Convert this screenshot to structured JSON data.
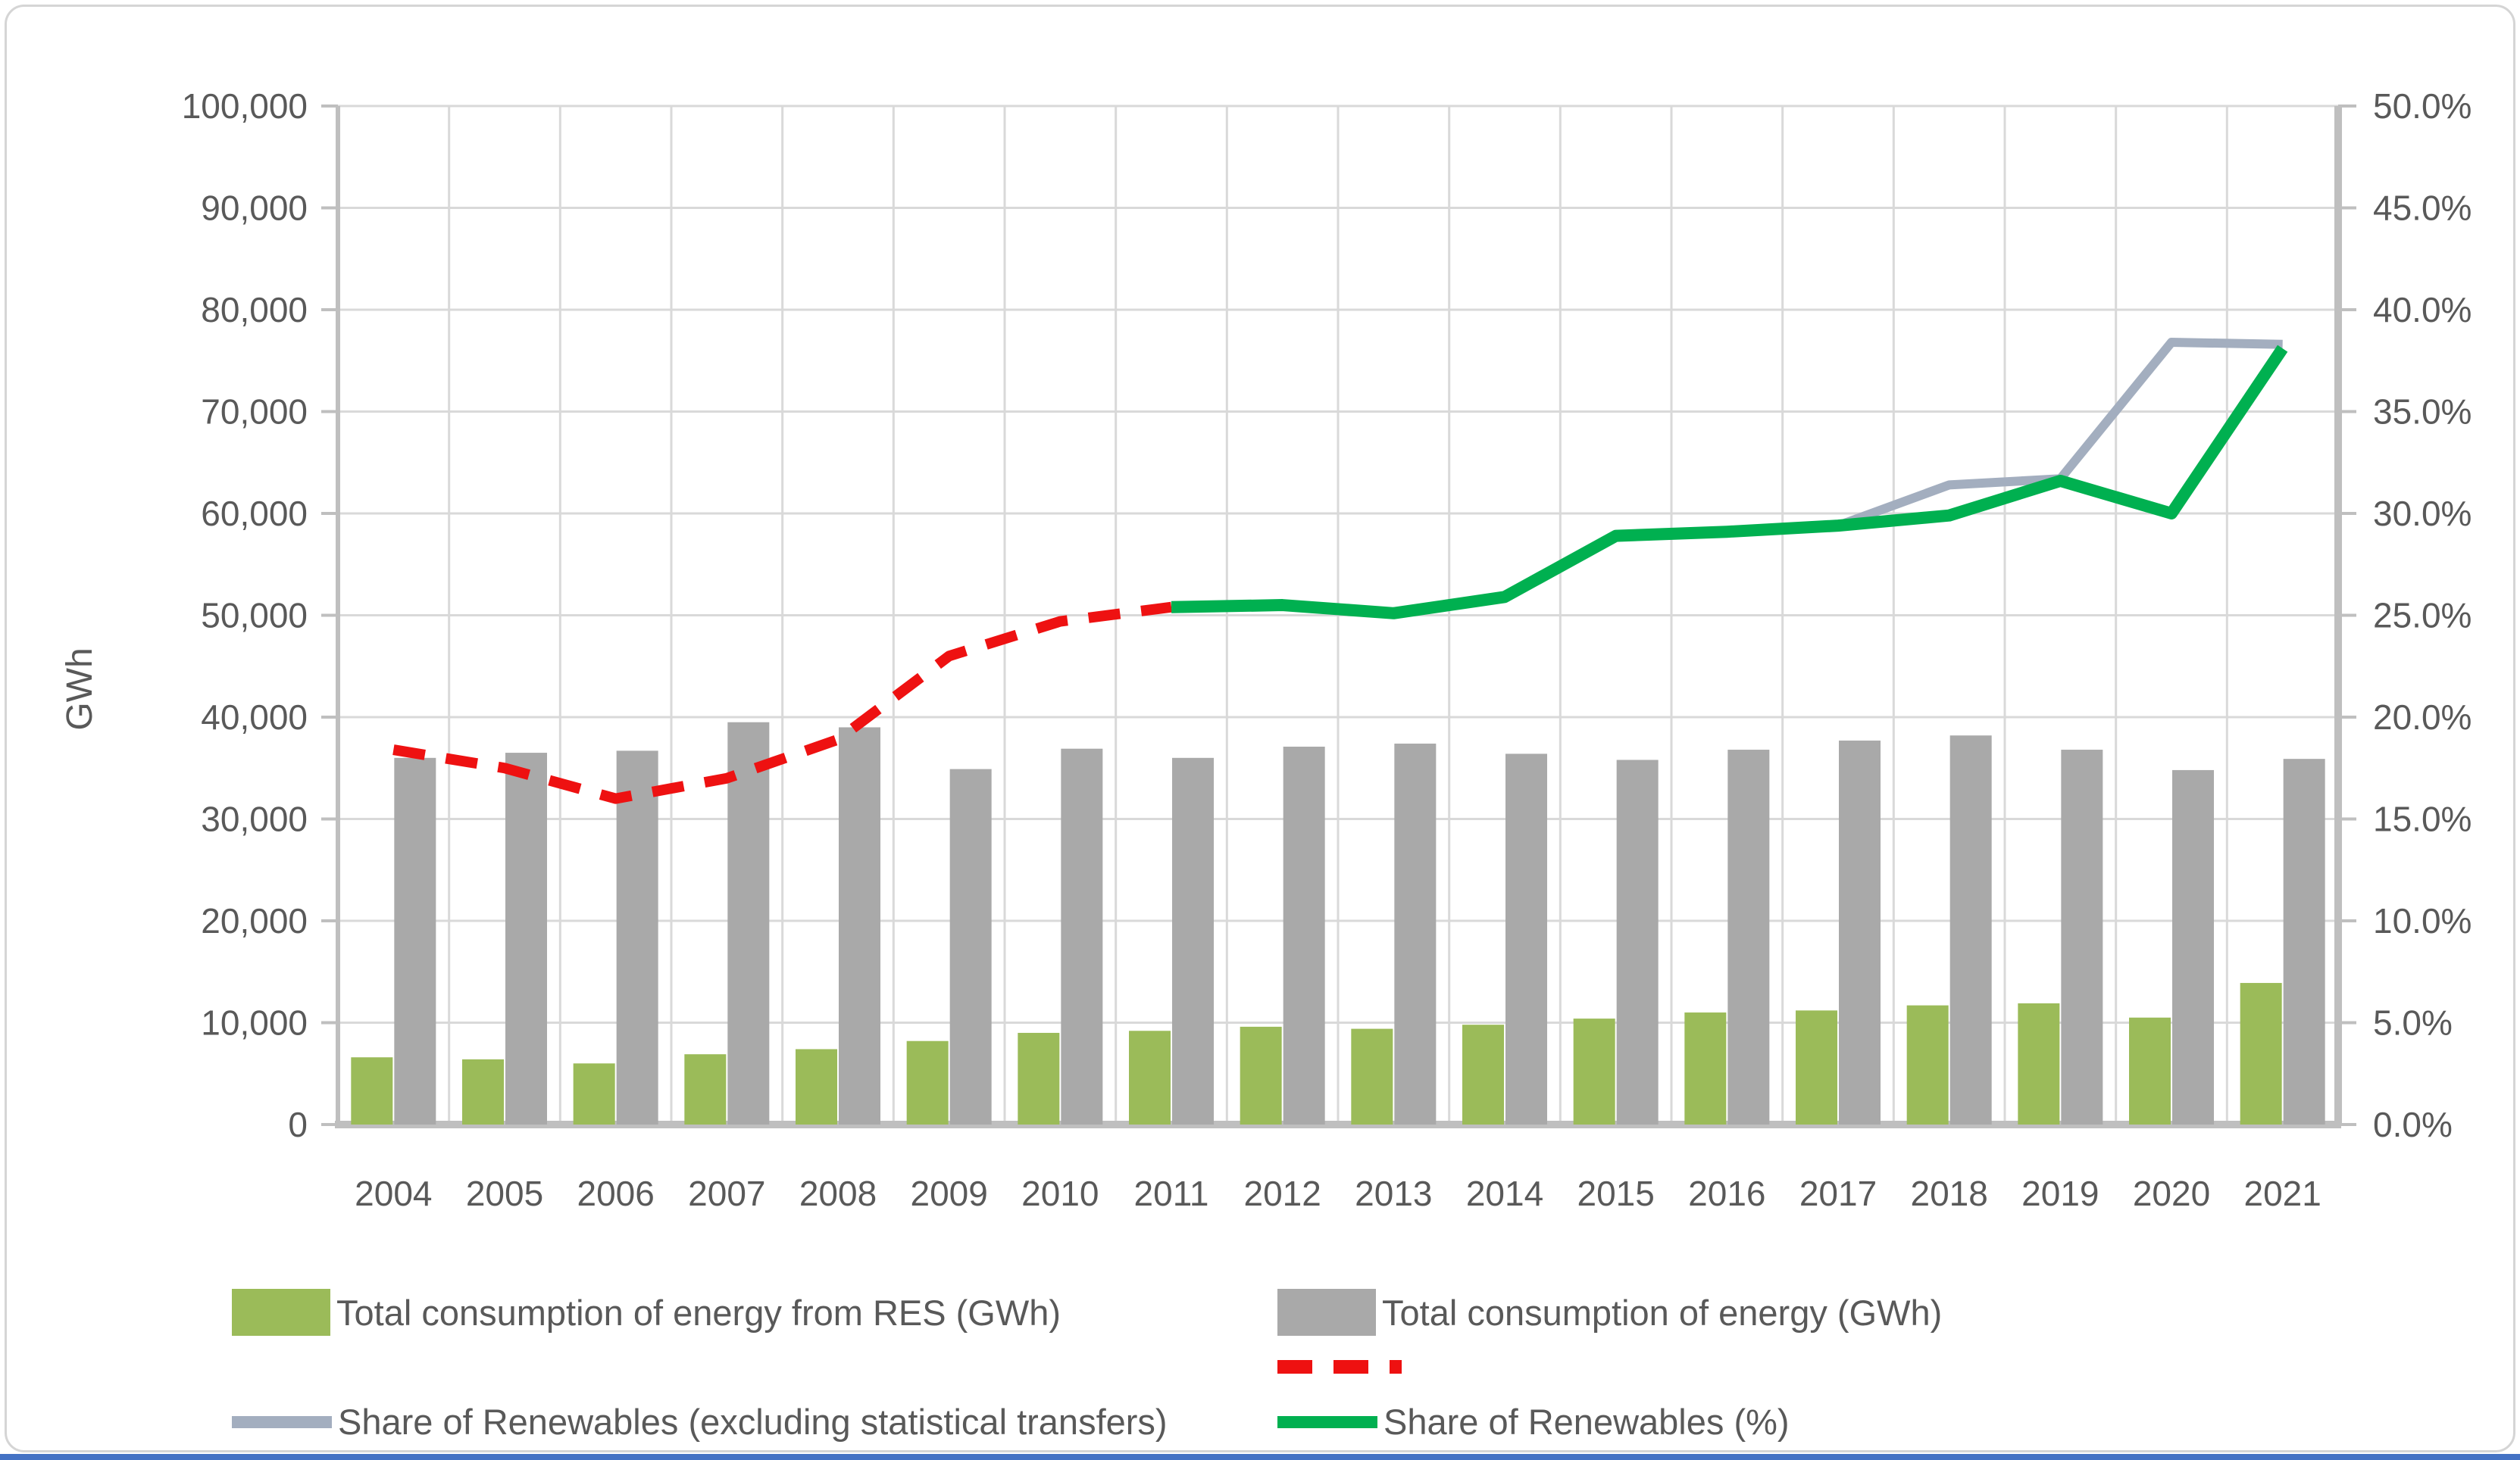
{
  "axis_label_left": "GWh",
  "chart_data": {
    "type": "combo-bar-line",
    "categories": [
      "2004",
      "2005",
      "2006",
      "2007",
      "2008",
      "2009",
      "2010",
      "2011",
      "2012",
      "2013",
      "2014",
      "2015",
      "2016",
      "2017",
      "2018",
      "2019",
      "2020",
      "2021"
    ],
    "series": [
      {
        "name": "Total consumption of energy from RES (GWh)",
        "type": "bar",
        "axis": "left",
        "color": "#9bbb59",
        "values": [
          6600,
          6400,
          6000,
          6900,
          7400,
          8200,
          9000,
          9200,
          9600,
          9400,
          9800,
          10400,
          11000,
          11200,
          11700,
          11900,
          10500,
          13900
        ]
      },
      {
        "name": "Total consumption of energy (GWh)",
        "type": "bar",
        "axis": "left",
        "color": "#a9a9a9",
        "values": [
          36000,
          36500,
          36700,
          39500,
          39000,
          34900,
          36900,
          36000,
          37100,
          37400,
          36400,
          35800,
          36800,
          37700,
          38200,
          36800,
          34800,
          35900
        ]
      },
      {
        "name": "",
        "type": "line",
        "dashed": true,
        "axis": "right",
        "color": "#ee1111",
        "width": 14,
        "values": [
          18.4,
          17.5,
          16.0,
          17.0,
          18.9,
          23.0,
          24.7,
          25.4,
          null,
          null,
          null,
          null,
          null,
          null,
          null,
          null,
          null,
          null
        ]
      },
      {
        "name": "Share of Renewables (excluding statistical transfers)",
        "type": "line",
        "dashed": false,
        "axis": "right",
        "color": "#a3aebf",
        "width": 12,
        "values": [
          null,
          null,
          null,
          null,
          null,
          null,
          null,
          null,
          null,
          null,
          null,
          null,
          null,
          29.4,
          31.4,
          31.7,
          38.4,
          38.3
        ]
      },
      {
        "name": "Share of Renewables (%)",
        "type": "line",
        "dashed": false,
        "axis": "right",
        "color": "#00b050",
        "width": 16,
        "values": [
          null,
          null,
          null,
          null,
          null,
          null,
          null,
          25.4,
          25.5,
          25.1,
          25.9,
          28.9,
          29.1,
          29.4,
          29.9,
          31.6,
          30.0,
          38.1
        ]
      }
    ],
    "left_axis": {
      "label": "GWh",
      "min": 0,
      "max": 100000,
      "step": 10000,
      "tick_labels": [
        "0",
        "10,000",
        "20,000",
        "30,000",
        "40,000",
        "50,000",
        "60,000",
        "70,000",
        "80,000",
        "90,000",
        "100,000"
      ]
    },
    "right_axis": {
      "min": 0,
      "max": 50,
      "step": 5,
      "tick_labels": [
        "0.0%",
        "5.0%",
        "10.0%",
        "15.0%",
        "20.0%",
        "25.0%",
        "30.0%",
        "35.0%",
        "40.0%",
        "45.0%",
        "50.0%"
      ]
    },
    "grid": true,
    "legend_position": "bottom",
    "style": {
      "text_color": "#595959",
      "grid_color": "#d9d9d9",
      "axis_color": "#bfbfbf",
      "background": "#ffffff",
      "bottom_strip_color": "#4472c4"
    }
  }
}
